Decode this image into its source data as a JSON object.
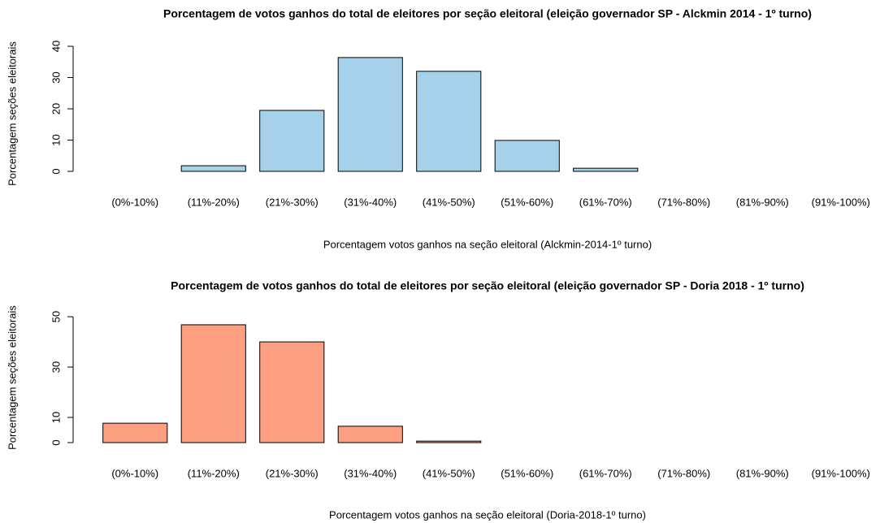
{
  "chart_data": [
    {
      "type": "bar",
      "title": "Porcentagem de votos ganhos do total de eleitores por seção eleitoral (eleição governador SP - Alckmin 2014 - 1º turno)",
      "x_label": "Porcentagem votos ganhos na seção eleitoral (Alckmin-2014-1º turno)",
      "y_label": "Porcentagem seções eleitorais",
      "categories": [
        "(0%-10%)",
        "(11%-20%)",
        "(21%-30%)",
        "(31%-40%)",
        "(41%-50%)",
        "(51%-60%)",
        "(61%-70%)",
        "(71%-80%)",
        "(81%-90%)",
        "(91%-100%)"
      ],
      "values": [
        0,
        1.8,
        19.5,
        36.4,
        32,
        9.9,
        1,
        0,
        0,
        0
      ],
      "color": "#a6d1ea",
      "ylim": [
        0,
        40
      ],
      "yticks": [
        0,
        10,
        20,
        30,
        40
      ]
    },
    {
      "type": "bar",
      "title": "Porcentagem de votos ganhos do total de eleitores por seção eleitoral (eleição governador SP - Doria 2018 - 1º turno)",
      "x_label": "Porcentagem votos ganhos na seção eleitoral (Doria-2018-1º turno)",
      "y_label": "Porcentagem seções eleitorais",
      "categories": [
        "(0%-10%)",
        "(11%-20%)",
        "(21%-30%)",
        "(31%-40%)",
        "(41%-50%)",
        "(51%-60%)",
        "(61%-70%)",
        "(71%-80%)",
        "(81%-90%)",
        "(91%-100%)"
      ],
      "values": [
        7.7,
        46.8,
        40,
        6.5,
        0.6,
        0,
        0,
        0,
        0,
        0
      ],
      "color": "#fca081",
      "ylim": [
        0,
        50
      ],
      "yticks": [
        0,
        10,
        30,
        50
      ]
    }
  ]
}
